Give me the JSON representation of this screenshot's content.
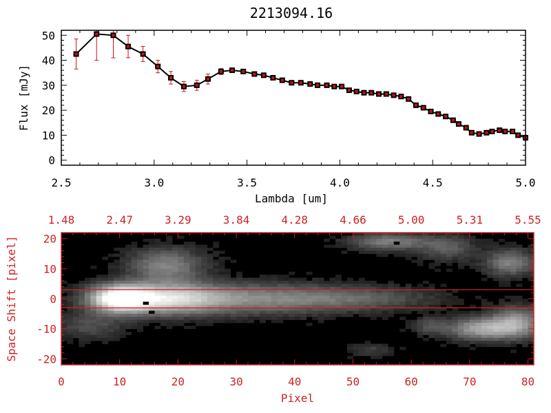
{
  "colors": {
    "axis_black": "#000000",
    "accent_red": "#cc2222",
    "marker_red": "#cc1111",
    "background": "#ffffff"
  },
  "chart_data": [
    {
      "type": "line",
      "title": "2213094.16",
      "xlabel": "Lambda [um]",
      "ylabel": "Flux [mJy]",
      "xlim": [
        2.5,
        5.0
      ],
      "ylim": [
        -2,
        52
      ],
      "xticks": [
        "2.5",
        "3.0",
        "3.5",
        "4.0",
        "4.5",
        "5.0"
      ],
      "yticks": [
        "0",
        "10",
        "20",
        "30",
        "40",
        "50"
      ],
      "grid": false,
      "series": [
        {
          "x": [
            2.58,
            2.69,
            2.78,
            2.86,
            2.94,
            3.02,
            3.09,
            3.16,
            3.23,
            3.29,
            3.36,
            3.42,
            3.48,
            3.54,
            3.59,
            3.64,
            3.69,
            3.74,
            3.79,
            3.84,
            3.88,
            3.93,
            3.97,
            4.01,
            4.05,
            4.09,
            4.13,
            4.17,
            4.21,
            4.25,
            4.29,
            4.33,
            4.37,
            4.41,
            4.45,
            4.49,
            4.53,
            4.57,
            4.61,
            4.64,
            4.68,
            4.71,
            4.75,
            4.79,
            4.82,
            4.86,
            4.89,
            4.93,
            4.96,
            5.0
          ],
          "y": [
            42.5,
            50.5,
            50.0,
            45.5,
            42.5,
            37.5,
            33.0,
            29.5,
            30.0,
            32.5,
            35.5,
            36.0,
            35.5,
            34.5,
            34.0,
            33.0,
            32.0,
            31.0,
            31.0,
            30.5,
            30.0,
            30.0,
            29.5,
            29.5,
            28.0,
            27.5,
            27.0,
            27.0,
            26.5,
            26.5,
            26.0,
            25.5,
            24.5,
            22.0,
            21.0,
            19.5,
            18.5,
            17.5,
            16.0,
            14.5,
            13.0,
            11.0,
            10.5,
            11.0,
            11.5,
            12.0,
            11.5,
            11.5,
            10.0,
            9.0
          ],
          "yerr": [
            6.0,
            10.5,
            9.0,
            4.5,
            3.0,
            2.5,
            2.5,
            2.0,
            2.0,
            2.0,
            1.2,
            0.8,
            0.8,
            0.8,
            0.8,
            0.6,
            0.6,
            0.6,
            0.6,
            0.6,
            0.6,
            0.6,
            0.6,
            0.6,
            0.6,
            0.6,
            0.6,
            0.6,
            0.6,
            0.6,
            0.6,
            0.6,
            0.6,
            0.6,
            0.6,
            0.6,
            0.6,
            0.6,
            0.6,
            0.6,
            0.6,
            0.6,
            0.6,
            0.6,
            0.6,
            0.6,
            0.6,
            0.6,
            0.8,
            1.0
          ]
        }
      ]
    },
    {
      "type": "heatmap",
      "xlabel": "Pixel",
      "ylabel": "Space Shift [pixel]",
      "xlim": [
        0,
        81
      ],
      "ylim": [
        -22,
        22
      ],
      "xticks": [
        "0",
        "10",
        "20",
        "30",
        "40",
        "50",
        "60",
        "70",
        "80"
      ],
      "yticks": [
        "-20",
        "-10",
        "0",
        "10",
        "20"
      ],
      "top_ticks": [
        "1.48",
        "2.47",
        "3.29",
        "3.84",
        "4.28",
        "4.66",
        "5.00",
        "5.31",
        "5.55"
      ],
      "extraction_window": [
        -3,
        3
      ],
      "colormap": "grayscale",
      "blobs": [
        {
          "x": 10,
          "y": 0,
          "sx": 3.5,
          "sy": 3.0,
          "a": 1.0
        },
        {
          "x": 18,
          "y": 0,
          "sx": 6.0,
          "sy": 3.5,
          "a": 0.6
        },
        {
          "x": 32,
          "y": 0,
          "sx": 13.0,
          "sy": 3.5,
          "a": 0.42
        },
        {
          "x": 52,
          "y": 0,
          "sx": 9.0,
          "sy": 2.5,
          "a": 0.18
        },
        {
          "x": 18,
          "y": 11,
          "sx": 4.5,
          "sy": 4.0,
          "a": 0.4
        },
        {
          "x": 5,
          "y": -9,
          "sx": 4.0,
          "sy": 3.0,
          "a": 0.2
        },
        {
          "x": 56,
          "y": 19,
          "sx": 4.5,
          "sy": 2.0,
          "a": 0.38
        },
        {
          "x": 66,
          "y": 17,
          "sx": 3.5,
          "sy": 3.0,
          "a": 0.25
        },
        {
          "x": 77,
          "y": 12,
          "sx": 3.0,
          "sy": 3.0,
          "a": 0.4
        },
        {
          "x": 72,
          "y": -10,
          "sx": 4.0,
          "sy": 2.5,
          "a": 0.55
        },
        {
          "x": 78,
          "y": -8,
          "sx": 3.0,
          "sy": 3.5,
          "a": 0.5
        },
        {
          "x": 53,
          "y": -17,
          "sx": 2.5,
          "sy": 1.5,
          "a": 0.15
        },
        {
          "x": 63,
          "y": -9,
          "sx": 2.0,
          "sy": 2.0,
          "a": 0.2
        }
      ],
      "dark_pixels": [
        [
          14,
          -2
        ],
        [
          15,
          -5
        ],
        [
          57,
          18
        ]
      ]
    }
  ]
}
